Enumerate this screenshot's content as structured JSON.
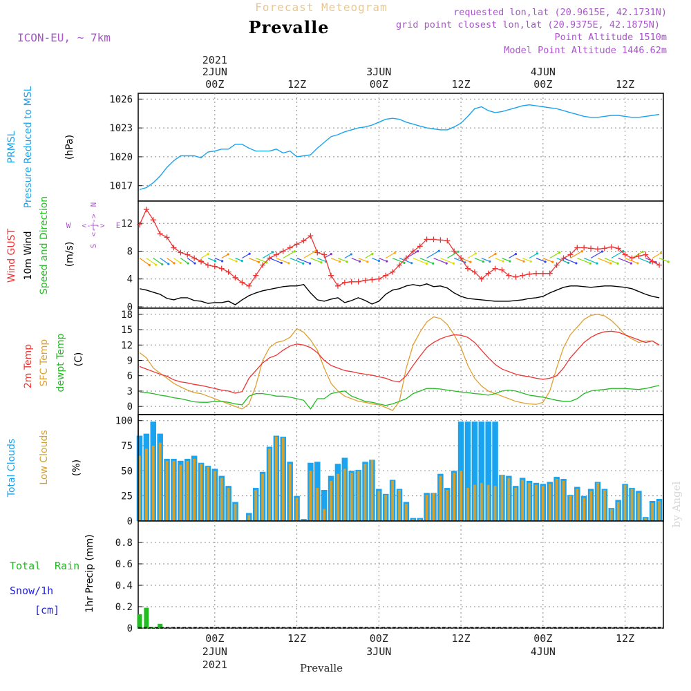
{
  "header": {
    "forecast_label": "Forecast Meteogram",
    "station": "Prevalle",
    "model": "ICON-EU, ~ 7km",
    "requested": "requested lon,lat (20.9615E, 42.1731N)",
    "gridpoint": "grid point closest lon,lat (20.9375E, 42.1875N)",
    "point_alt": "Point Altitude 1510m",
    "model_alt": "Model Point Altitude 1446.62m",
    "credit": "by Angel",
    "footer_station": "Prevalle"
  },
  "time_axis": {
    "top_year": "2021",
    "top_dates": [
      {
        "label": "2JUN",
        "hour": 24
      },
      {
        "label": "3JUN",
        "hour": 48
      },
      {
        "label": "4JUN",
        "hour": 72
      }
    ],
    "ticks": [
      {
        "hour": 24,
        "label": "00Z"
      },
      {
        "hour": 36,
        "label": "12Z"
      },
      {
        "hour": 48,
        "label": "00Z"
      },
      {
        "hour": 60,
        "label": "12Z"
      },
      {
        "hour": 72,
        "label": "00Z"
      },
      {
        "hour": 84,
        "label": "12Z"
      }
    ],
    "bottom_dates": [
      {
        "label": "2JUN",
        "hour": 24,
        "year": "2021"
      },
      {
        "label": "3JUN",
        "hour": 48,
        "year": ""
      },
      {
        "label": "4JUN",
        "hour": 72,
        "year": ""
      }
    ],
    "range_hours": [
      12.8,
      89.6
    ]
  },
  "colors": {
    "pressure": "#1aa3ef",
    "gust": "#ee3333",
    "wind": "#000000",
    "direction_label": "#22bb22",
    "temp": "#ee3333",
    "sfc": "#e0a030",
    "dewpt": "#22bb22",
    "total_cloud": "#1aa3ef",
    "low_cloud": "#d4a030",
    "rain": "#22bb22",
    "snow": "#2222dd",
    "compass": "#aa55cc",
    "grid": "#888888"
  },
  "chart_data": [
    {
      "type": "line",
      "title": "PRMSL Pressure Reduced to MSL",
      "ylabel": "(hPa)",
      "label_lines": [
        "PRMSL",
        "Pressure Reduced to MSL"
      ],
      "unit": "(hPa)",
      "ylim": [
        1015.4,
        1026.6
      ],
      "yticks": [
        1017,
        1020,
        1023,
        1026
      ],
      "x": [
        13,
        14,
        15,
        16,
        17,
        18,
        19,
        20,
        21,
        22,
        23,
        24,
        25,
        26,
        27,
        28,
        29,
        30,
        31,
        32,
        33,
        34,
        35,
        36,
        37,
        38,
        39,
        40,
        41,
        42,
        43,
        44,
        45,
        46,
        47,
        48,
        49,
        50,
        51,
        52,
        53,
        54,
        55,
        56,
        57,
        58,
        59,
        60,
        61,
        62,
        63,
        64,
        65,
        66,
        67,
        68,
        69,
        70,
        71,
        72,
        73,
        74,
        75,
        76,
        77,
        78,
        79,
        80,
        81,
        82,
        83,
        84,
        85,
        86,
        87,
        88,
        89
      ],
      "series": [
        {
          "name": "PRMSL",
          "values": [
            1016.6,
            1016.8,
            1017.3,
            1018.0,
            1018.9,
            1019.6,
            1020.1,
            1020.1,
            1020.1,
            1019.9,
            1020.5,
            1020.6,
            1020.8,
            1020.8,
            1021.3,
            1021.3,
            1020.9,
            1020.6,
            1020.6,
            1020.6,
            1020.8,
            1020.4,
            1020.6,
            1020.0,
            1020.1,
            1020.2,
            1020.9,
            1021.5,
            1022.1,
            1022.3,
            1022.6,
            1022.8,
            1023.0,
            1023.1,
            1023.3,
            1023.6,
            1023.9,
            1024.0,
            1023.9,
            1023.6,
            1023.4,
            1023.2,
            1023.0,
            1022.9,
            1022.8,
            1022.8,
            1023.1,
            1023.5,
            1024.2,
            1025.0,
            1025.2,
            1024.8,
            1024.6,
            1024.7,
            1024.9,
            1025.1,
            1025.3,
            1025.4,
            1025.3,
            1025.2,
            1025.1,
            1025.0,
            1024.8,
            1024.6,
            1024.4,
            1024.2,
            1024.1,
            1024.1,
            1024.2,
            1024.3,
            1024.3,
            1024.2,
            1024.1,
            1024.1,
            1024.2,
            1024.3,
            1024.4
          ]
        }
      ]
    },
    {
      "type": "line",
      "title": "Wind GUST / 10m Wind Speed and Direction",
      "ylabel": "(m/s)",
      "label_lines": [
        "Wind GUST",
        "10m Wind",
        "Speed and Direction"
      ],
      "unit": "(m/s)",
      "compass": {
        "n": "N",
        "s": "S",
        "e": "E",
        "w": "W"
      },
      "ylim": [
        -0.2,
        15.2
      ],
      "yticks": [
        0,
        4,
        8,
        12
      ],
      "x": [
        13,
        14,
        15,
        16,
        17,
        18,
        19,
        20,
        21,
        22,
        23,
        24,
        25,
        26,
        27,
        28,
        29,
        30,
        31,
        32,
        33,
        34,
        35,
        36,
        37,
        38,
        39,
        40,
        41,
        42,
        43,
        44,
        45,
        46,
        47,
        48,
        49,
        50,
        51,
        52,
        53,
        54,
        55,
        56,
        57,
        58,
        59,
        60,
        61,
        62,
        63,
        64,
        65,
        66,
        67,
        68,
        69,
        70,
        71,
        72,
        73,
        74,
        75,
        76,
        77,
        78,
        79,
        80,
        81,
        82,
        83,
        84,
        85,
        86,
        87,
        88,
        89
      ],
      "series": [
        {
          "name": "Wind GUST",
          "values": [
            11.8,
            14.0,
            12.5,
            10.5,
            10.0,
            8.5,
            7.8,
            7.5,
            7.0,
            6.5,
            6.0,
            5.8,
            5.5,
            5.0,
            4.2,
            3.5,
            3.0,
            4.5,
            6.0,
            7.0,
            7.5,
            8.0,
            8.5,
            9.0,
            9.5,
            10.2,
            7.8,
            7.5,
            4.5,
            3.0,
            3.5,
            3.6,
            3.6,
            3.8,
            3.9,
            4.0,
            4.5,
            5.0,
            6.0,
            7.0,
            8.0,
            8.7,
            9.7,
            9.7,
            9.6,
            9.5,
            8.0,
            7.0,
            5.5,
            5.0,
            4.0,
            4.8,
            5.5,
            5.3,
            4.5,
            4.3,
            4.5,
            4.7,
            4.8,
            4.8,
            4.8,
            6.0,
            7.0,
            7.5,
            8.5,
            8.5,
            8.4,
            8.3,
            8.4,
            8.6,
            8.4,
            7.5,
            7.0,
            7.3,
            7.5,
            6.5,
            6.0
          ]
        },
        {
          "name": "10m Wind",
          "values": [
            2.6,
            2.4,
            2.1,
            1.8,
            1.2,
            1.0,
            1.3,
            1.3,
            0.9,
            0.8,
            0.5,
            0.6,
            0.6,
            0.8,
            0.3,
            1.0,
            1.6,
            2.0,
            2.3,
            2.5,
            2.7,
            2.9,
            3.0,
            3.0,
            3.2,
            2.0,
            1.0,
            0.8,
            1.1,
            1.3,
            0.6,
            0.9,
            1.3,
            0.9,
            0.4,
            0.8,
            1.8,
            2.4,
            2.6,
            3.0,
            3.2,
            3.0,
            3.3,
            2.9,
            3.0,
            2.7,
            2.0,
            1.5,
            1.2,
            1.1,
            1.0,
            0.9,
            0.8,
            0.8,
            0.8,
            0.9,
            1.0,
            1.2,
            1.3,
            1.5,
            2.0,
            2.4,
            2.8,
            3.0,
            3.0,
            2.9,
            2.8,
            2.9,
            3.0,
            3.0,
            2.9,
            2.8,
            2.6,
            2.2,
            1.8,
            1.5,
            1.3
          ]
        }
      ]
    },
    {
      "type": "line",
      "title": "2m Temp / SFC Temp / dewpt Temp",
      "ylabel": "(C)",
      "label_lines": [
        "2m Temp",
        "SFC Temp",
        "dewpt Temp"
      ],
      "unit": "(C)",
      "ylim": [
        -1.6,
        19.2
      ],
      "yticks": [
        0,
        3,
        6,
        9,
        12,
        15,
        18
      ],
      "x": [
        13,
        14,
        15,
        16,
        17,
        18,
        19,
        20,
        21,
        22,
        23,
        24,
        25,
        26,
        27,
        28,
        29,
        30,
        31,
        32,
        33,
        34,
        35,
        36,
        37,
        38,
        39,
        40,
        41,
        42,
        43,
        44,
        45,
        46,
        47,
        48,
        49,
        50,
        51,
        52,
        53,
        54,
        55,
        56,
        57,
        58,
        59,
        60,
        61,
        62,
        63,
        64,
        65,
        66,
        67,
        68,
        69,
        70,
        71,
        72,
        73,
        74,
        75,
        76,
        77,
        78,
        79,
        80,
        81,
        82,
        83,
        84,
        85,
        86,
        87,
        88,
        89
      ],
      "series": [
        {
          "name": "2m Temp",
          "values": [
            7.8,
            7.3,
            6.8,
            6.3,
            5.9,
            5.2,
            4.8,
            4.6,
            4.3,
            4.1,
            3.8,
            3.5,
            3.2,
            3.0,
            2.6,
            2.9,
            5.5,
            7.0,
            8.5,
            9.5,
            10.0,
            11.0,
            11.8,
            12.2,
            12.0,
            11.5,
            10.5,
            9.0,
            8.0,
            7.5,
            7.0,
            6.8,
            6.5,
            6.3,
            6.1,
            5.8,
            5.5,
            5.0,
            4.8,
            6.0,
            8.0,
            9.8,
            11.5,
            12.5,
            13.2,
            13.7,
            14.0,
            13.9,
            13.5,
            12.5,
            11.0,
            9.5,
            8.2,
            7.3,
            6.8,
            6.3,
            6.0,
            5.8,
            5.5,
            5.3,
            5.5,
            6.0,
            7.5,
            9.5,
            11.0,
            12.5,
            13.5,
            14.2,
            14.6,
            14.7,
            14.5,
            14.0,
            13.5,
            13.0,
            12.5,
            12.8,
            12.0
          ]
        },
        {
          "name": "SFC Temp",
          "values": [
            10.5,
            9.5,
            7.5,
            6.5,
            5.5,
            4.5,
            3.8,
            3.2,
            2.7,
            2.5,
            2.0,
            1.5,
            1.0,
            0.5,
            0.0,
            -0.5,
            0.5,
            4.0,
            9.0,
            11.5,
            12.5,
            12.8,
            13.5,
            15.2,
            14.5,
            13.0,
            11.0,
            7.5,
            4.5,
            3.0,
            2.0,
            1.5,
            1.0,
            0.8,
            0.5,
            0.3,
            -0.2,
            -0.8,
            1.0,
            7.5,
            12.0,
            14.5,
            16.5,
            17.5,
            17.2,
            16.0,
            14.0,
            11.5,
            8.0,
            5.5,
            4.0,
            3.0,
            2.5,
            2.0,
            1.5,
            1.0,
            0.7,
            0.5,
            0.4,
            0.8,
            3.0,
            7.5,
            11.5,
            14.0,
            15.5,
            17.0,
            17.8,
            18.0,
            17.7,
            16.8,
            15.5,
            14.0,
            13.2,
            12.5,
            12.8,
            12.8,
            11.9
          ]
        },
        {
          "name": "dewpt Temp",
          "values": [
            2.8,
            2.7,
            2.5,
            2.2,
            2.0,
            1.7,
            1.5,
            1.2,
            0.9,
            0.8,
            0.8,
            1.0,
            1.0,
            0.8,
            0.5,
            0.3,
            2.0,
            2.5,
            2.5,
            2.3,
            2.0,
            2.0,
            1.8,
            1.5,
            1.2,
            -0.5,
            1.5,
            1.5,
            2.5,
            2.8,
            3.0,
            2.0,
            1.5,
            1.0,
            0.8,
            0.5,
            0.2,
            0.5,
            1.0,
            1.5,
            2.5,
            3.0,
            3.5,
            3.5,
            3.4,
            3.2,
            3.0,
            2.8,
            2.7,
            2.5,
            2.4,
            2.2,
            2.5,
            3.0,
            3.2,
            3.0,
            2.6,
            2.2,
            2.0,
            1.8,
            1.5,
            1.2,
            1.0,
            1.0,
            1.5,
            2.5,
            3.0,
            3.2,
            3.3,
            3.5,
            3.5,
            3.5,
            3.4,
            3.3,
            3.5,
            3.8,
            4.1
          ]
        }
      ]
    },
    {
      "type": "bar",
      "title": "Total Clouds / Low Clouds",
      "ylabel": "(%)",
      "label_lines": [
        "Total Clouds",
        "Low Clouds"
      ],
      "unit": "(%)",
      "ylim": [
        0,
        106
      ],
      "yticks": [
        0,
        25,
        50,
        75,
        100
      ],
      "x": [
        13,
        14,
        15,
        16,
        17,
        18,
        19,
        20,
        21,
        22,
        23,
        24,
        25,
        26,
        27,
        28,
        29,
        30,
        31,
        32,
        33,
        34,
        35,
        36,
        37,
        38,
        39,
        40,
        41,
        42,
        43,
        44,
        45,
        46,
        47,
        48,
        49,
        50,
        51,
        52,
        53,
        54,
        55,
        56,
        57,
        58,
        59,
        60,
        61,
        62,
        63,
        64,
        65,
        66,
        67,
        68,
        69,
        70,
        71,
        72,
        73,
        74,
        75,
        76,
        77,
        78,
        79,
        80,
        81,
        82,
        83,
        84,
        85,
        86,
        87,
        88,
        89
      ],
      "series": [
        {
          "name": "Total Clouds",
          "values": [
            85,
            87,
            99,
            87,
            62,
            62,
            60,
            62,
            65,
            58,
            55,
            52,
            45,
            35,
            19,
            0,
            8,
            33,
            49,
            74,
            85,
            84,
            59,
            25,
            2,
            58,
            59,
            31,
            45,
            57,
            63,
            50,
            51,
            59,
            61,
            32,
            27,
            41,
            32,
            19,
            3,
            3,
            28,
            28,
            47,
            33,
            50,
            99,
            99,
            99,
            99,
            99,
            99,
            46,
            45,
            35,
            43,
            40,
            38,
            37,
            39,
            44,
            42,
            26,
            34,
            25,
            32,
            39,
            32,
            13,
            21,
            37,
            33,
            30,
            4,
            20,
            22
          ]
        },
        {
          "name": "Low Clouds",
          "values": [
            65,
            72,
            75,
            78,
            60,
            60,
            56,
            60,
            62,
            57,
            54,
            50,
            43,
            33,
            17,
            0,
            6,
            31,
            47,
            72,
            84,
            83,
            57,
            23,
            1,
            50,
            33,
            12,
            40,
            47,
            52,
            48,
            50,
            57,
            61,
            30,
            26,
            40,
            31,
            17,
            2,
            2,
            26,
            28,
            45,
            31,
            48,
            50,
            33,
            36,
            38,
            36,
            35,
            46,
            43,
            33,
            41,
            38,
            36,
            35,
            37,
            42,
            40,
            25,
            32,
            23,
            30,
            38,
            31,
            12,
            19,
            36,
            32,
            28,
            3,
            18,
            20
          ]
        }
      ]
    },
    {
      "type": "bar",
      "title": "1hr Precip (mm)",
      "ylabel": "1hr Precip (mm)",
      "label_lines": [
        "Total",
        "Rain",
        "Snow/1h",
        "[cm]"
      ],
      "unit": "1hr Precip (mm)",
      "ylim": [
        0,
        1.0
      ],
      "yticks": [
        0,
        0.2,
        0.4,
        0.6,
        0.8
      ],
      "x": [
        13,
        14,
        15,
        16,
        17
      ],
      "series": [
        {
          "name": "Total Rain",
          "values": [
            0.13,
            0.19,
            0.01,
            0.04,
            0.0
          ]
        },
        {
          "name": "Snow",
          "values": [
            0,
            0,
            0,
            0,
            0
          ]
        }
      ]
    }
  ]
}
